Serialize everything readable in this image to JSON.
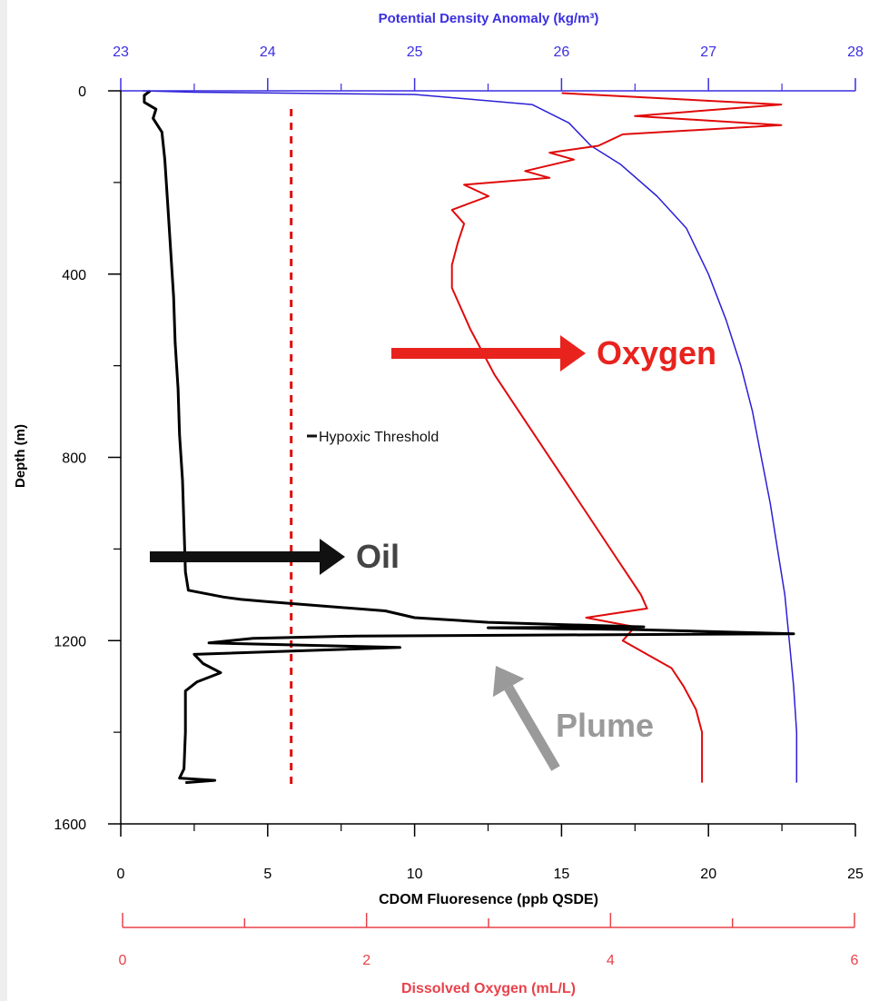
{
  "chart_data": {
    "type": "line",
    "ylabel": "Depth (m)",
    "ylim": [
      0,
      1600
    ],
    "y_inverted": true,
    "y_ticks": [
      "0",
      "400",
      "800",
      "1200",
      "1600"
    ],
    "axes": {
      "top": {
        "label": "Potential Density Anomaly (kg/m³)",
        "range": [
          23,
          28
        ],
        "ticks": [
          "23",
          "24",
          "25",
          "26",
          "27",
          "28"
        ],
        "color": "#3b2fe0"
      },
      "bottom": {
        "label": "CDOM Fluoresence (ppb QSDE)",
        "range": [
          0,
          25
        ],
        "ticks": [
          "0",
          "5",
          "10",
          "15",
          "20",
          "25"
        ],
        "color": "#000000"
      },
      "oxygen": {
        "label": "Dissolved Oxygen (mL/L)",
        "range": [
          0,
          6
        ],
        "ticks": [
          "0",
          "2",
          "4",
          "6"
        ],
        "color": "#e8424a"
      }
    },
    "series": [
      {
        "axis": "top",
        "color": "#2b1fd6",
        "points": [
          [
            23.15,
            0
          ],
          [
            23.5,
            3
          ],
          [
            25.0,
            8
          ],
          [
            25.8,
            30
          ],
          [
            26.05,
            70
          ],
          [
            26.2,
            120
          ],
          [
            26.4,
            160
          ],
          [
            26.65,
            230
          ],
          [
            26.85,
            300
          ],
          [
            27.0,
            400
          ],
          [
            27.12,
            500
          ],
          [
            27.22,
            600
          ],
          [
            27.3,
            700
          ],
          [
            27.36,
            800
          ],
          [
            27.42,
            900
          ],
          [
            27.47,
            1000
          ],
          [
            27.52,
            1100
          ],
          [
            27.55,
            1200
          ],
          [
            27.58,
            1300
          ],
          [
            27.6,
            1400
          ],
          [
            27.6,
            1510
          ]
        ]
      },
      {
        "axis": "oxygen",
        "color": "#e00a0a",
        "points": [
          [
            3.6,
            5
          ],
          [
            5.4,
            30
          ],
          [
            4.2,
            55
          ],
          [
            5.4,
            75
          ],
          [
            4.1,
            95
          ],
          [
            3.9,
            120
          ],
          [
            3.5,
            135
          ],
          [
            3.7,
            150
          ],
          [
            3.3,
            175
          ],
          [
            3.5,
            190
          ],
          [
            2.8,
            205
          ],
          [
            3.0,
            230
          ],
          [
            2.7,
            260
          ],
          [
            2.8,
            290
          ],
          [
            2.75,
            330
          ],
          [
            2.7,
            380
          ],
          [
            2.7,
            430
          ],
          [
            2.85,
            520
          ],
          [
            3.05,
            620
          ],
          [
            3.3,
            720
          ],
          [
            3.55,
            820
          ],
          [
            3.8,
            920
          ],
          [
            4.05,
            1020
          ],
          [
            4.25,
            1100
          ],
          [
            4.3,
            1130
          ],
          [
            3.8,
            1150
          ],
          [
            4.2,
            1170
          ],
          [
            4.1,
            1200
          ],
          [
            4.3,
            1230
          ],
          [
            4.5,
            1260
          ],
          [
            4.6,
            1300
          ],
          [
            4.7,
            1350
          ],
          [
            4.75,
            1400
          ],
          [
            4.75,
            1450
          ],
          [
            4.75,
            1510
          ]
        ]
      },
      {
        "axis": "bottom",
        "color": "#000000",
        "points": [
          [
            1.0,
            0
          ],
          [
            0.8,
            10
          ],
          [
            0.8,
            25
          ],
          [
            1.2,
            40
          ],
          [
            1.1,
            60
          ],
          [
            1.4,
            90
          ],
          [
            1.5,
            150
          ],
          [
            1.6,
            250
          ],
          [
            1.7,
            350
          ],
          [
            1.8,
            450
          ],
          [
            1.85,
            550
          ],
          [
            1.95,
            650
          ],
          [
            2.0,
            750
          ],
          [
            2.1,
            850
          ],
          [
            2.15,
            950
          ],
          [
            2.2,
            1050
          ],
          [
            2.3,
            1090
          ],
          [
            3.5,
            1105
          ],
          [
            4.1,
            1110
          ],
          [
            5.0,
            1115
          ],
          [
            9.0,
            1135
          ],
          [
            10.0,
            1150
          ],
          [
            12.5,
            1160
          ],
          [
            15.0,
            1165
          ],
          [
            17.8,
            1170
          ],
          [
            12.5,
            1172
          ],
          [
            17.5,
            1176
          ],
          [
            22.9,
            1185
          ],
          [
            8.0,
            1190
          ],
          [
            4.5,
            1195
          ],
          [
            3.0,
            1205
          ],
          [
            9.5,
            1215
          ],
          [
            2.5,
            1230
          ],
          [
            2.8,
            1250
          ],
          [
            3.4,
            1270
          ],
          [
            2.6,
            1290
          ],
          [
            2.2,
            1310
          ],
          [
            2.2,
            1400
          ],
          [
            2.15,
            1480
          ],
          [
            2.0,
            1500
          ],
          [
            3.2,
            1505
          ],
          [
            2.2,
            1510
          ]
        ]
      }
    ],
    "threshold": {
      "label": "Hypoxic Threshold",
      "x": 5.8,
      "axis": "bottom",
      "color": "#e00a0a",
      "style": "dashed"
    },
    "annotations": [
      {
        "text": "Oxygen",
        "color": "#e8231e"
      },
      {
        "text": "Oil",
        "color": "#444444"
      },
      {
        "text": "Plume",
        "color": "#9a9a9a"
      }
    ]
  }
}
